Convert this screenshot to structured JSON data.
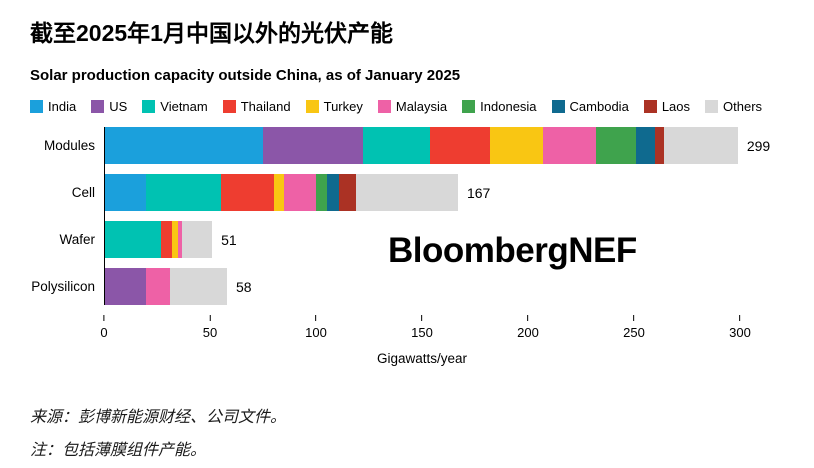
{
  "header": {
    "title": "截至2025年1月中国以外的光伏产能",
    "subtitle": "Solar production capacity outside China, as of January 2025"
  },
  "branding": {
    "watermark": "BloombergNEF"
  },
  "footer": {
    "source": "来源：彭博新能源财经、公司文件。",
    "note": "注：包括薄膜组件产能。"
  },
  "chart_data": {
    "type": "bar",
    "orientation": "horizontal",
    "stacked": true,
    "title": "Solar production capacity outside China, as of January 2025",
    "categories": [
      "Modules",
      "Cell",
      "Wafer",
      "Polysilicon"
    ],
    "totals": [
      299,
      167,
      51,
      58
    ],
    "series": [
      {
        "name": "India",
        "color": "#1ba0dc",
        "values": [
          75,
          20,
          0,
          0
        ]
      },
      {
        "name": "US",
        "color": "#8b56a8",
        "values": [
          47,
          0,
          0,
          20
        ]
      },
      {
        "name": "Vietnam",
        "color": "#00c2b2",
        "values": [
          32,
          35,
          27,
          0
        ]
      },
      {
        "name": "Thailand",
        "color": "#ee3d30",
        "values": [
          28,
          25,
          5,
          0
        ]
      },
      {
        "name": "Turkey",
        "color": "#f9c613",
        "values": [
          25,
          5,
          3,
          0
        ]
      },
      {
        "name": "Malaysia",
        "color": "#ee61a6",
        "values": [
          25,
          15,
          2,
          11
        ]
      },
      {
        "name": "Indonesia",
        "color": "#3fa34d",
        "values": [
          19,
          5,
          0,
          0
        ]
      },
      {
        "name": "Cambodia",
        "color": "#0f6a8f",
        "values": [
          9,
          6,
          0,
          0
        ]
      },
      {
        "name": "Laos",
        "color": "#ab3224",
        "values": [
          4,
          8,
          0,
          0
        ]
      },
      {
        "name": "Others",
        "color": "#d8d8d8",
        "values": [
          35,
          48,
          14,
          27
        ]
      }
    ],
    "xticks": [
      0,
      50,
      100,
      150,
      200,
      250,
      300
    ],
    "xlim": [
      0,
      300
    ],
    "xlabel": "Gigawatts/year",
    "legend_position": "top",
    "grid": false
  }
}
